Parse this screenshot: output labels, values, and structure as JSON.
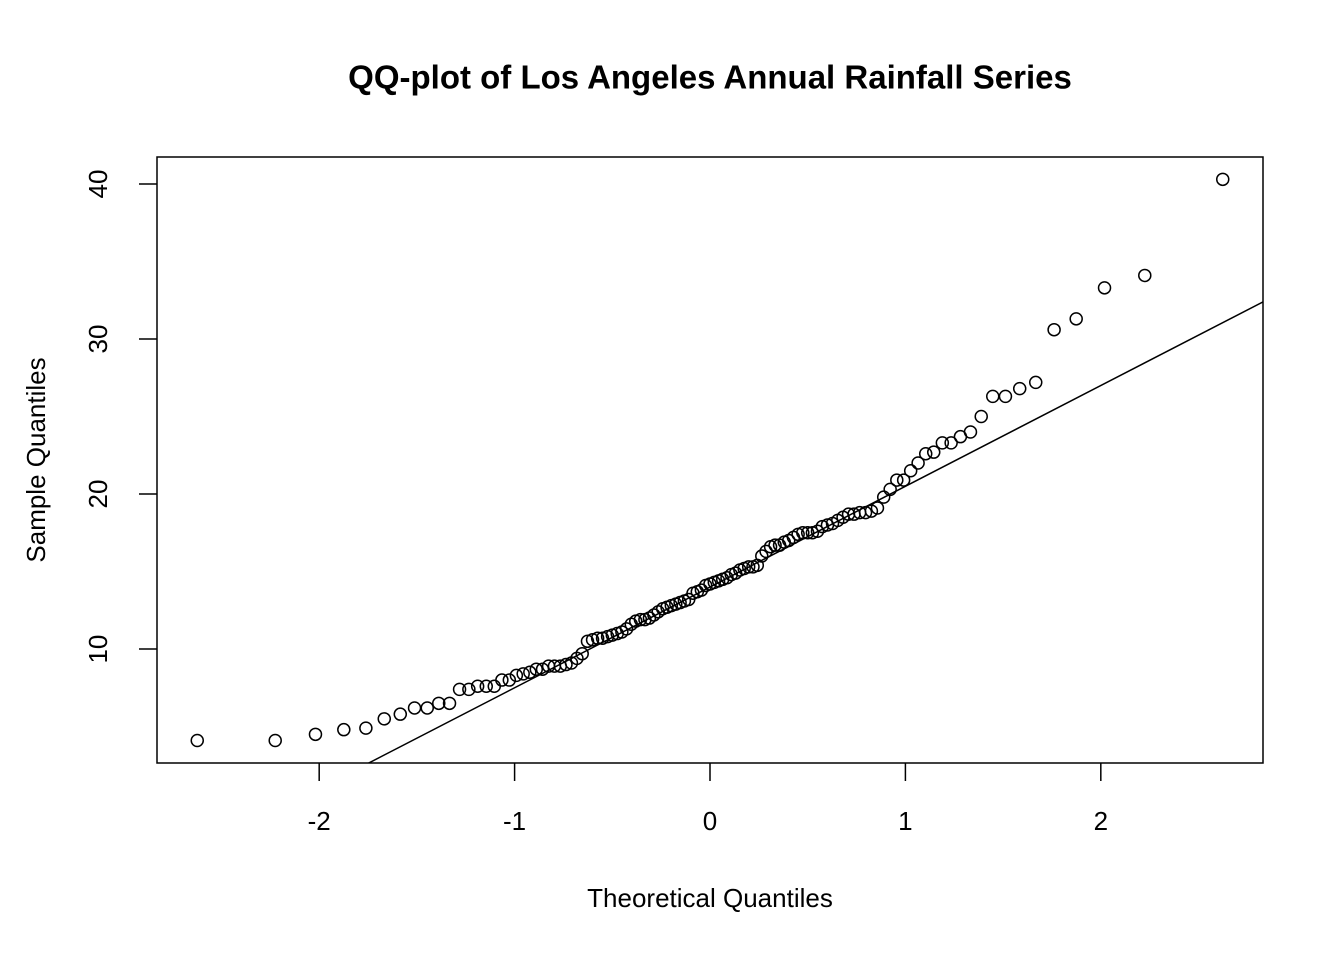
{
  "chart_data": {
    "type": "scatter",
    "title": "QQ-plot of Los Angeles Annual Rainfall Series",
    "x_label": "Theoretical Quantiles",
    "y_label": "Sample Quantiles",
    "x": [
      -2.624,
      -2.225,
      -2.019,
      -1.874,
      -1.761,
      -1.667,
      -1.585,
      -1.512,
      -1.447,
      -1.388,
      -1.333,
      -1.2816,
      -1.234,
      -1.189,
      -1.145,
      -1.104,
      -1.065,
      -1.027,
      -0.991,
      -0.956,
      -0.922,
      -0.889,
      -0.857,
      -0.826,
      -0.796,
      -0.766,
      -0.737,
      -0.709,
      -0.681,
      -0.654,
      -0.627,
      -0.601,
      -0.575,
      -0.55,
      -0.524,
      -0.5,
      -0.475,
      -0.451,
      -0.427,
      -0.403,
      -0.38,
      -0.356,
      -0.333,
      -0.31,
      -0.287,
      -0.265,
      -0.242,
      -0.22,
      -0.198,
      -0.175,
      -0.153,
      -0.131,
      -0.109,
      -0.087,
      -0.065,
      -0.044,
      -0.022,
      0,
      0.022,
      0.044,
      0.065,
      0.087,
      0.109,
      0.131,
      0.153,
      0.175,
      0.198,
      0.22,
      0.242,
      0.265,
      0.287,
      0.31,
      0.333,
      0.356,
      0.38,
      0.403,
      0.427,
      0.451,
      0.475,
      0.5,
      0.524,
      0.55,
      0.575,
      0.601,
      0.627,
      0.654,
      0.681,
      0.709,
      0.737,
      0.766,
      0.796,
      0.826,
      0.857,
      0.889,
      0.922,
      0.956,
      0.991,
      1.027,
      1.065,
      1.104,
      1.145,
      1.189,
      1.234,
      1.2816,
      1.333,
      1.388,
      1.447,
      1.512,
      1.585,
      1.667,
      1.761,
      1.874,
      2.019,
      2.225,
      2.624
    ],
    "values": [
      4.1,
      4.1,
      4.5,
      4.8,
      4.9,
      5.5,
      5.8,
      6.2,
      6.2,
      6.5,
      6.5,
      7.4,
      7.4,
      7.6,
      7.6,
      7.6,
      8.0,
      8.0,
      8.3,
      8.4,
      8.5,
      8.7,
      8.7,
      8.9,
      8.9,
      8.9,
      9.0,
      9.1,
      9.4,
      9.7,
      10.5,
      10.6,
      10.7,
      10.7,
      10.8,
      10.9,
      11.0,
      11.1,
      11.3,
      11.6,
      11.8,
      11.9,
      11.9,
      12.0,
      12.2,
      12.4,
      12.6,
      12.7,
      12.8,
      12.9,
      13.0,
      13.1,
      13.2,
      13.6,
      13.7,
      13.8,
      14.1,
      14.2,
      14.3,
      14.4,
      14.5,
      14.6,
      14.8,
      14.9,
      15.1,
      15.2,
      15.3,
      15.3,
      15.4,
      16.0,
      16.3,
      16.6,
      16.7,
      16.7,
      16.9,
      17.0,
      17.2,
      17.4,
      17.5,
      17.5,
      17.5,
      17.6,
      17.9,
      18.0,
      18.1,
      18.3,
      18.5,
      18.7,
      18.7,
      18.8,
      18.8,
      18.9,
      19.1,
      19.8,
      20.3,
      20.9,
      20.9,
      21.5,
      22.0,
      22.6,
      22.7,
      23.3,
      23.3,
      23.7,
      24.0,
      25.0,
      26.3,
      26.3,
      26.8,
      27.2,
      30.6,
      31.3,
      33.3,
      34.1,
      40.3
    ],
    "color": "#000000",
    "qqline": {
      "intercept": 14.0,
      "slope": 6.5
    },
    "xlim": [
      -2.83,
      2.83
    ],
    "xticks": [
      -2,
      -1,
      0,
      1,
      2
    ],
    "ylim": [
      2.65,
      41.74
    ],
    "yticks": [
      10,
      20,
      30,
      40
    ]
  }
}
